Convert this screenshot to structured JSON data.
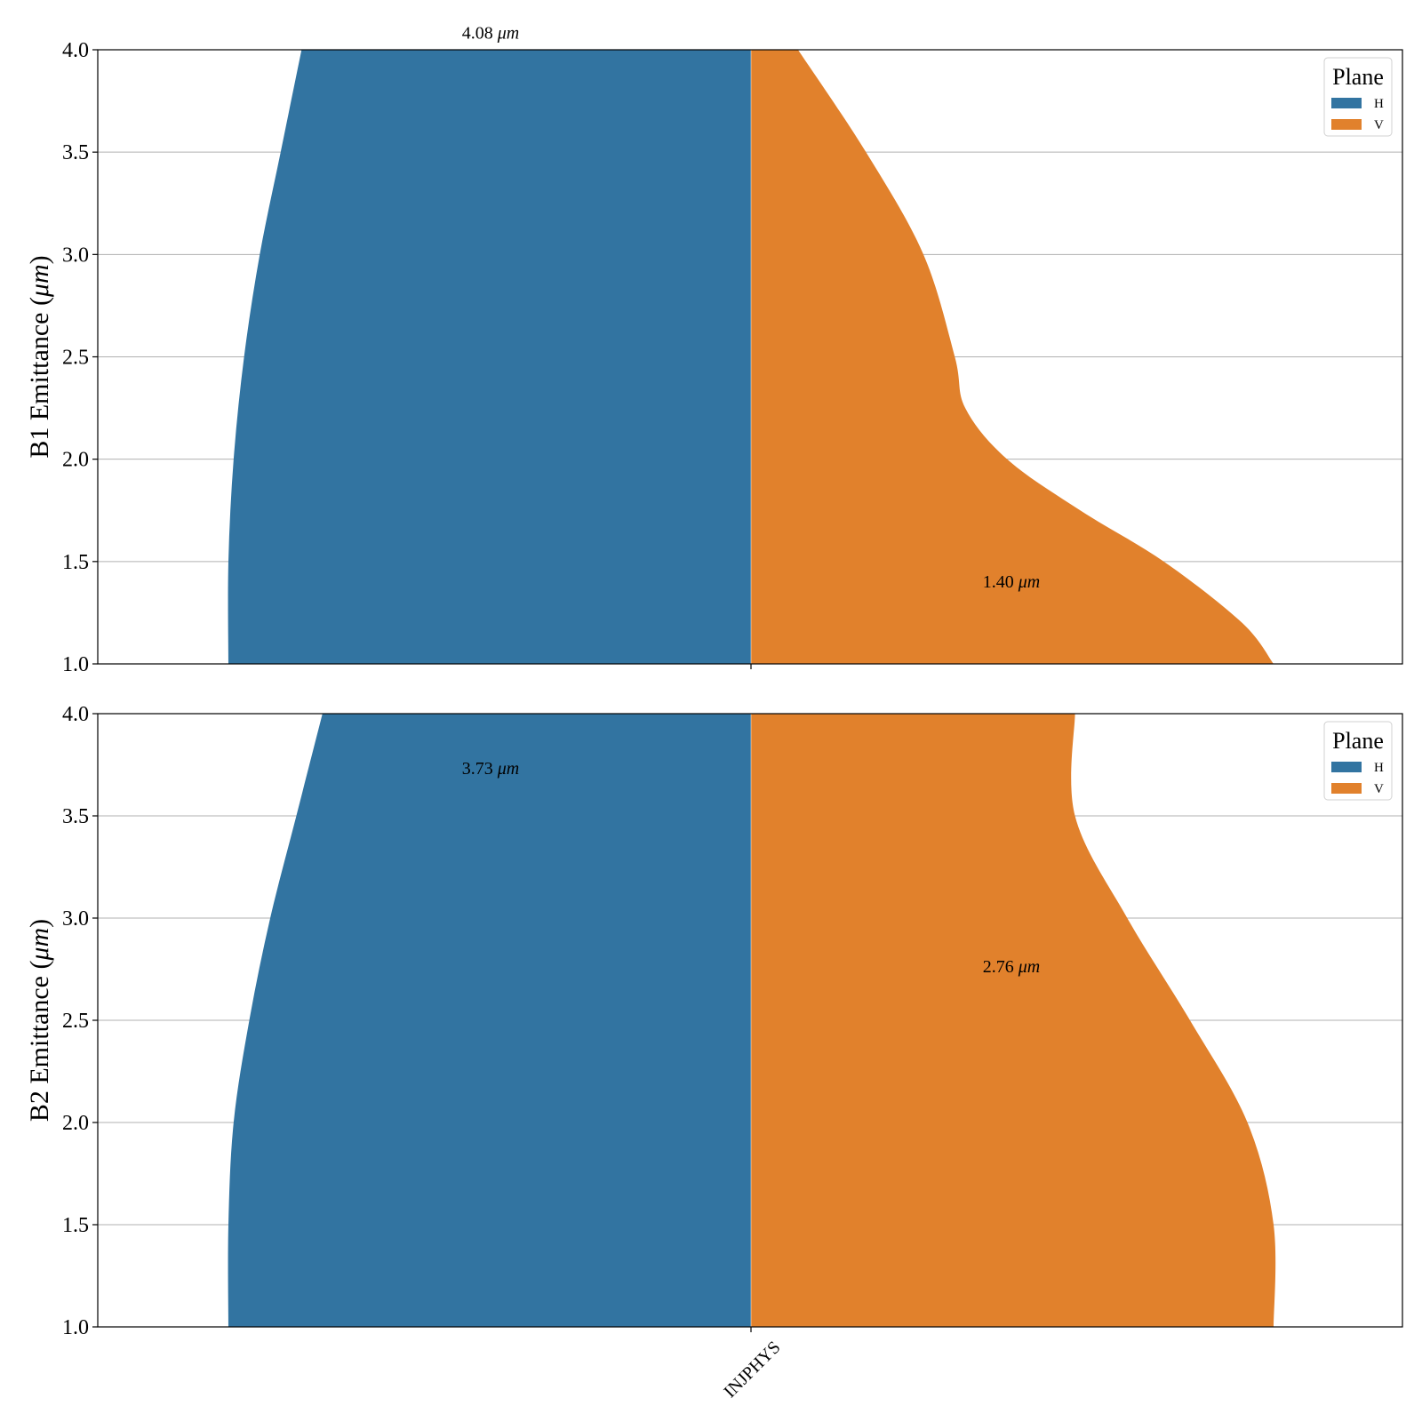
{
  "chart_data": [
    {
      "type": "violin",
      "ylabel": "B1 Emittance (μm)",
      "ylim": [
        1.0,
        4.0
      ],
      "yticks": [
        "1.0",
        "1.5",
        "2.0",
        "2.5",
        "3.0",
        "3.5",
        "4.0"
      ],
      "categories": [
        "INJPHYS"
      ],
      "grid": true,
      "legend": {
        "title": "Plane",
        "placement": "top-right",
        "entries": [
          "H",
          "V"
        ]
      },
      "series": [
        {
          "name": "H",
          "color": "#3274a1",
          "profile": [
            [
              1.0,
              1.0
            ],
            [
              1.5,
              1.0
            ],
            [
              2.0,
              0.99
            ],
            [
              2.5,
              0.97
            ],
            [
              3.0,
              0.94
            ],
            [
              3.5,
              0.9
            ],
            [
              4.0,
              0.86
            ]
          ],
          "annotation": {
            "text": "4.08 μm",
            "y": 4.08
          }
        },
        {
          "name": "V",
          "color": "#e1812c",
          "profile": [
            [
              1.0,
              1.0
            ],
            [
              1.2,
              0.94
            ],
            [
              1.5,
              0.79
            ],
            [
              1.75,
              0.63
            ],
            [
              2.0,
              0.49
            ],
            [
              2.25,
              0.41
            ],
            [
              2.5,
              0.39
            ],
            [
              3.0,
              0.33
            ],
            [
              3.5,
              0.22
            ],
            [
              4.0,
              0.09
            ]
          ],
          "annotation": {
            "text": "1.40 μm",
            "y": 1.4
          }
        }
      ]
    },
    {
      "type": "violin",
      "ylabel": "B2 Emittance (μm)",
      "ylim": [
        1.0,
        4.0
      ],
      "yticks": [
        "1.0",
        "1.5",
        "2.0",
        "2.5",
        "3.0",
        "3.5",
        "4.0"
      ],
      "categories": [
        "INJPHYS"
      ],
      "grid": true,
      "legend": {
        "title": "Plane",
        "placement": "top-right",
        "entries": [
          "H",
          "V"
        ]
      },
      "series": [
        {
          "name": "H",
          "color": "#3274a1",
          "profile": [
            [
              1.0,
              1.0
            ],
            [
              1.5,
              1.0
            ],
            [
              2.0,
              0.99
            ],
            [
              2.5,
              0.96
            ],
            [
              3.0,
              0.92
            ],
            [
              3.5,
              0.87
            ],
            [
              4.0,
              0.82
            ]
          ],
          "annotation": {
            "text": "3.73 μm",
            "y": 3.73
          }
        },
        {
          "name": "V",
          "color": "#e1812c",
          "profile": [
            [
              1.0,
              1.0
            ],
            [
              1.5,
              1.0
            ],
            [
              2.0,
              0.95
            ],
            [
              2.5,
              0.84
            ],
            [
              3.0,
              0.72
            ],
            [
              3.5,
              0.62
            ],
            [
              4.0,
              0.62
            ]
          ],
          "annotation": {
            "text": "2.76 μm",
            "y": 2.76
          }
        }
      ]
    }
  ]
}
